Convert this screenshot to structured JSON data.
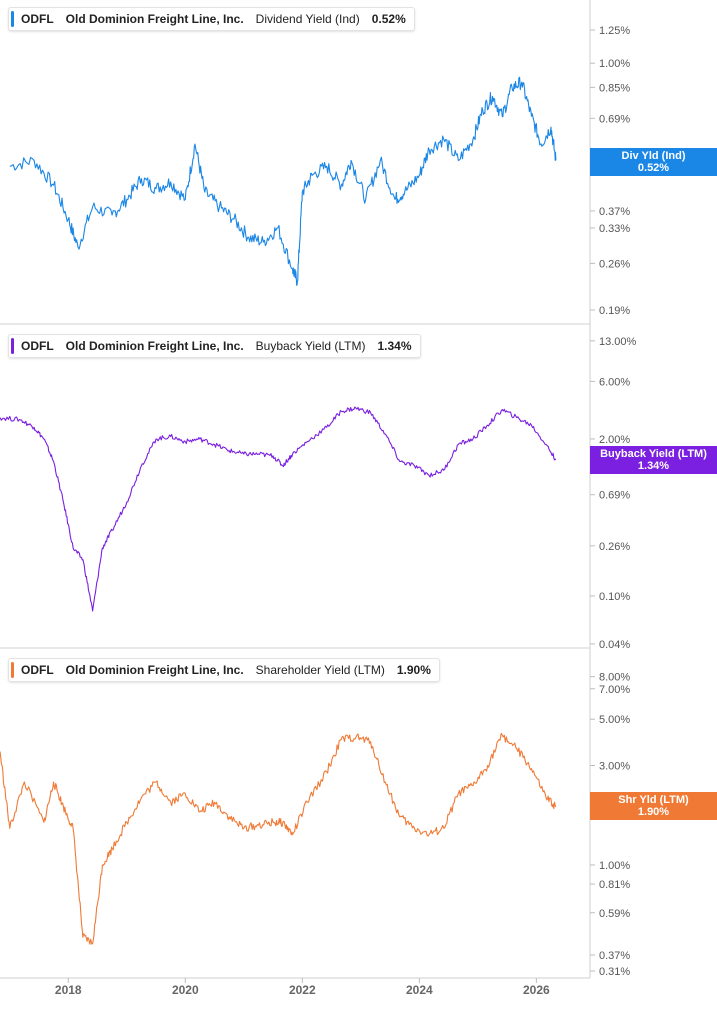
{
  "panels": [
    {
      "ticker": "ODFL",
      "company": "Old Dominion Freight Line, Inc.",
      "metric": "Dividend Yield (Ind)",
      "value": "0.52%",
      "color": "#1a86e6",
      "badge": {
        "label": "Div Yld (Ind)",
        "value": "0.52%"
      }
    },
    {
      "ticker": "ODFL",
      "company": "Old Dominion Freight Line, Inc.",
      "metric": "Buyback Yield (LTM)",
      "value": "1.34%",
      "color": "#7b1fe0",
      "badge": {
        "label": "Buyback Yield (LTM)",
        "value": "1.34%"
      }
    },
    {
      "ticker": "ODFL",
      "company": "Old Dominion Freight Line, Inc.",
      "metric": "Shareholder Yield (LTM)",
      "value": "1.90%",
      "color": "#f07a35",
      "badge": {
        "label": "Shr Yld (LTM)",
        "value": "1.90%"
      }
    }
  ],
  "chart_data": [
    {
      "type": "line",
      "scale": "log",
      "series": [
        {
          "name": "Dividend Yield (Ind)",
          "x": [
            "2017-01",
            "2017-06",
            "2017-10",
            "2018-01",
            "2018-03",
            "2018-06",
            "2018-10",
            "2019-01",
            "2019-04",
            "2019-07",
            "2019-10",
            "2020-01",
            "2020-03",
            "2020-05",
            "2020-08",
            "2020-11",
            "2021-02",
            "2021-05",
            "2021-08",
            "2021-11",
            "2021-12",
            "2022-01",
            "2022-03",
            "2022-06",
            "2022-09",
            "2022-11",
            "2023-02",
            "2023-05",
            "2023-08",
            "2023-10",
            "2024-01",
            "2024-03",
            "2024-06",
            "2024-09",
            "2024-12",
            "2025-02",
            "2025-04",
            "2025-06",
            "2025-08",
            "2025-10",
            "2025-12",
            "2026-02",
            "2026-04",
            "2026-05"
          ],
          "y": [
            0.5,
            0.52,
            0.44,
            0.35,
            0.29,
            0.38,
            0.36,
            0.4,
            0.46,
            0.43,
            0.45,
            0.4,
            0.58,
            0.42,
            0.38,
            0.35,
            0.31,
            0.3,
            0.33,
            0.25,
            0.23,
            0.42,
            0.47,
            0.5,
            0.44,
            0.52,
            0.4,
            0.52,
            0.4,
            0.42,
            0.47,
            0.56,
            0.6,
            0.52,
            0.6,
            0.73,
            0.8,
            0.7,
            0.85,
            0.88,
            0.7,
            0.58,
            0.65,
            0.52
          ]
        }
      ],
      "yticks": [
        "1.25%",
        "1.00%",
        "0.85%",
        "0.69%",
        "0.5",
        "0.37%",
        "0.33%",
        "0.26%",
        "0.19%"
      ],
      "xticks": [
        "2018",
        "2020",
        "2022",
        "2024",
        "2026"
      ],
      "ylim": [
        0.18,
        1.45
      ],
      "xlim": [
        "2016-11",
        "2026-12"
      ],
      "grid": false
    },
    {
      "type": "line",
      "scale": "log",
      "series": [
        {
          "name": "Buyback Yield (LTM)",
          "x": [
            "2016-11",
            "2017-03",
            "2017-06",
            "2017-08",
            "2017-10",
            "2017-12",
            "2018-02",
            "2018-04",
            "2018-06",
            "2018-08",
            "2018-10",
            "2019-01",
            "2019-04",
            "2019-07",
            "2019-10",
            "2020-01",
            "2020-04",
            "2020-07",
            "2020-10",
            "2021-01",
            "2021-04",
            "2021-07",
            "2021-09",
            "2021-11",
            "2022-02",
            "2022-06",
            "2022-09",
            "2022-12",
            "2023-03",
            "2023-06",
            "2023-09",
            "2023-12",
            "2024-03",
            "2024-06",
            "2024-09",
            "2024-12",
            "2025-03",
            "2025-06",
            "2025-09",
            "2025-12",
            "2026-03",
            "2026-05"
          ],
          "y": [
            3.0,
            2.9,
            2.5,
            2.0,
            1.3,
            0.6,
            0.25,
            0.2,
            0.075,
            0.25,
            0.35,
            0.6,
            1.2,
            2.0,
            2.1,
            1.9,
            2.0,
            1.8,
            1.6,
            1.5,
            1.5,
            1.45,
            1.2,
            1.5,
            1.9,
            2.5,
            3.4,
            3.6,
            3.3,
            2.2,
            1.3,
            1.2,
            1.0,
            1.1,
            1.8,
            2.0,
            2.6,
            3.5,
            3.0,
            2.6,
            1.8,
            1.34
          ]
        }
      ],
      "yticks": [
        "13.00%",
        "6.00%",
        "2.00%",
        "0.69%",
        "0.26%",
        "0.10%",
        "0.04%"
      ],
      "xticks": [
        "2018",
        "2020",
        "2022",
        "2024",
        "2026"
      ],
      "ylim": [
        0.037,
        14.0
      ],
      "xlim": [
        "2016-11",
        "2026-12"
      ],
      "grid": false
    },
    {
      "type": "line",
      "scale": "log",
      "series": [
        {
          "name": "Shareholder Yield (LTM)",
          "x": [
            "2016-11",
            "2017-01",
            "2017-04",
            "2017-08",
            "2017-10",
            "2017-12",
            "2018-02",
            "2018-04",
            "2018-06",
            "2018-08",
            "2018-10",
            "2019-01",
            "2019-04",
            "2019-07",
            "2019-10",
            "2020-01",
            "2020-04",
            "2020-07",
            "2020-10",
            "2021-01",
            "2021-04",
            "2021-07",
            "2021-09",
            "2021-11",
            "2022-02",
            "2022-06",
            "2022-09",
            "2022-12",
            "2023-03",
            "2023-06",
            "2023-09",
            "2023-12",
            "2024-03",
            "2024-06",
            "2024-09",
            "2024-12",
            "2025-03",
            "2025-06",
            "2025-09",
            "2025-12",
            "2026-03",
            "2026-05"
          ],
          "y": [
            3.5,
            1.5,
            2.5,
            1.6,
            2.5,
            1.9,
            1.5,
            0.45,
            0.42,
            1.0,
            1.2,
            1.6,
            2.1,
            2.5,
            2.0,
            2.2,
            1.8,
            2.0,
            1.7,
            1.5,
            1.55,
            1.6,
            1.6,
            1.4,
            2.0,
            2.8,
            4.0,
            4.1,
            3.9,
            2.5,
            1.7,
            1.5,
            1.4,
            1.5,
            2.2,
            2.4,
            3.0,
            4.2,
            3.6,
            2.9,
            2.1,
            1.9
          ]
        }
      ],
      "yticks": [
        "8.00%",
        "7.00%",
        "5.00%",
        "3.00%",
        "2.0",
        "1.00%",
        "0.81%",
        "0.59%",
        "0.37%",
        "0.31%"
      ],
      "xticks": [
        "2018",
        "2020",
        "2022",
        "2024",
        "2026"
      ],
      "ylim": [
        0.3,
        9.0
      ],
      "xlim": [
        "2016-11",
        "2026-12"
      ],
      "grid": false
    }
  ]
}
